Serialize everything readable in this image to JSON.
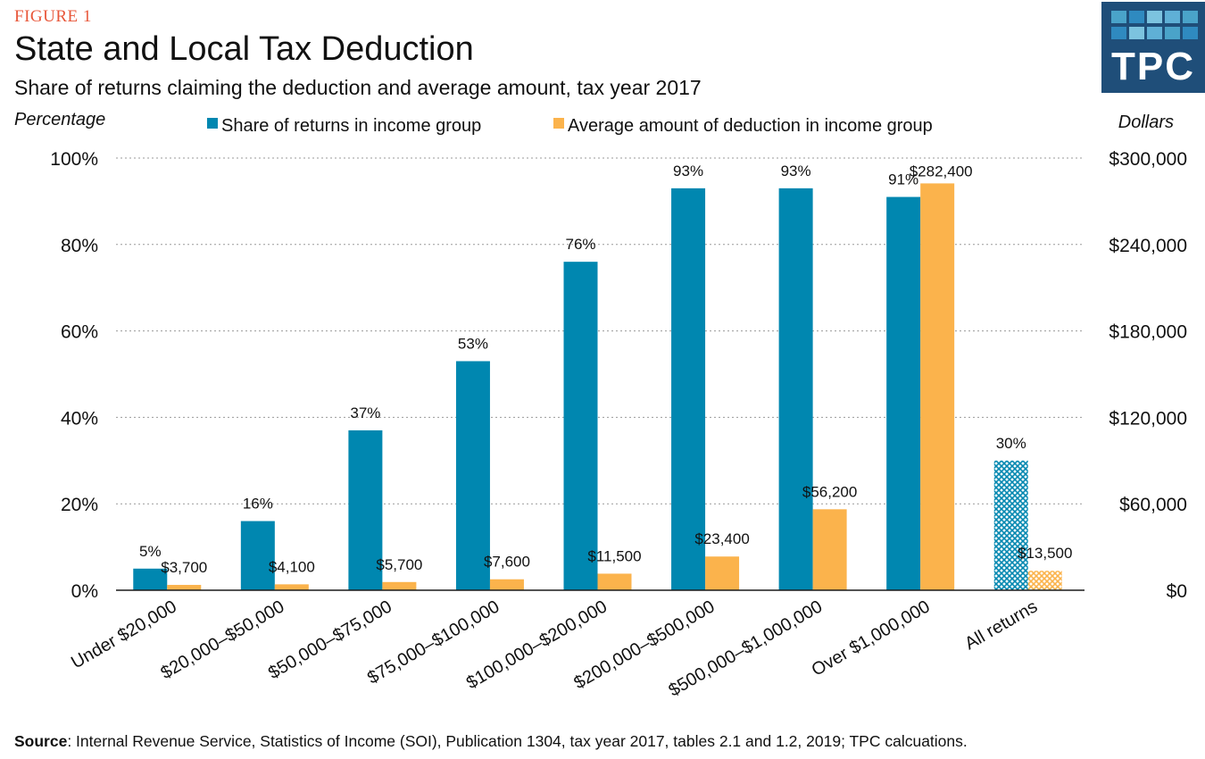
{
  "figure_label": "FIGURE 1",
  "logo": {
    "text": "TPC",
    "colors": [
      "#4aa3c9",
      "#2f8ac0",
      "#7cc3df",
      "#5fb0d6"
    ]
  },
  "source": {
    "label": "Source",
    "text": ": Internal Revenue Service, Statistics of Income (SOI), Publication 1304, tax year 2017, tables 2.1 and 1.2, 2019; TPC calcuations."
  },
  "chart_data": {
    "type": "bar",
    "title": "State and Local Tax Deduction",
    "subtitle": "Share of returns claiming the deduction and average amount, tax year 2017",
    "ylabel_left": "Percentage",
    "ylabel_right": "Dollars",
    "categories": [
      "Under $20,000",
      "$20,000–$50,000",
      "$50,000–$75,000",
      "$75,000–$100,000",
      "$100,000–$200,000",
      "$200,000–$500,000",
      "$500,000–$1,000,000",
      "Over $1,000,000",
      "All returns"
    ],
    "series": [
      {
        "name": "Share of returns in income group",
        "axis": "left",
        "color": "#0087b0",
        "values": [
          5,
          16,
          37,
          53,
          76,
          93,
          93,
          91,
          30
        ],
        "labels": [
          "5%",
          "16%",
          "37%",
          "53%",
          "76%",
          "93%",
          "93%",
          "91%",
          "30%"
        ]
      },
      {
        "name": "Average amount of deduction in income group",
        "axis": "right",
        "color": "#fbb34c",
        "values": [
          3700,
          4100,
          5700,
          7600,
          11500,
          23400,
          56200,
          282400,
          13500
        ],
        "labels": [
          "$3,700",
          "$4,100",
          "$5,700",
          "$7,600",
          "$11,500",
          "$23,400",
          "$56,200",
          "$282,400",
          "$13,500"
        ]
      }
    ],
    "ylim_left": [
      0,
      100
    ],
    "ylim_right": [
      0,
      300000
    ],
    "yticks_left": [
      "0%",
      "20%",
      "40%",
      "60%",
      "80%",
      "100%"
    ],
    "yticks_right": [
      "$0",
      "$60,000",
      "$120,000",
      "$180,000",
      "$240,000",
      "$300,000"
    ],
    "hatched_categories": [
      "All returns"
    ],
    "grid": true,
    "legend": "top-center"
  }
}
